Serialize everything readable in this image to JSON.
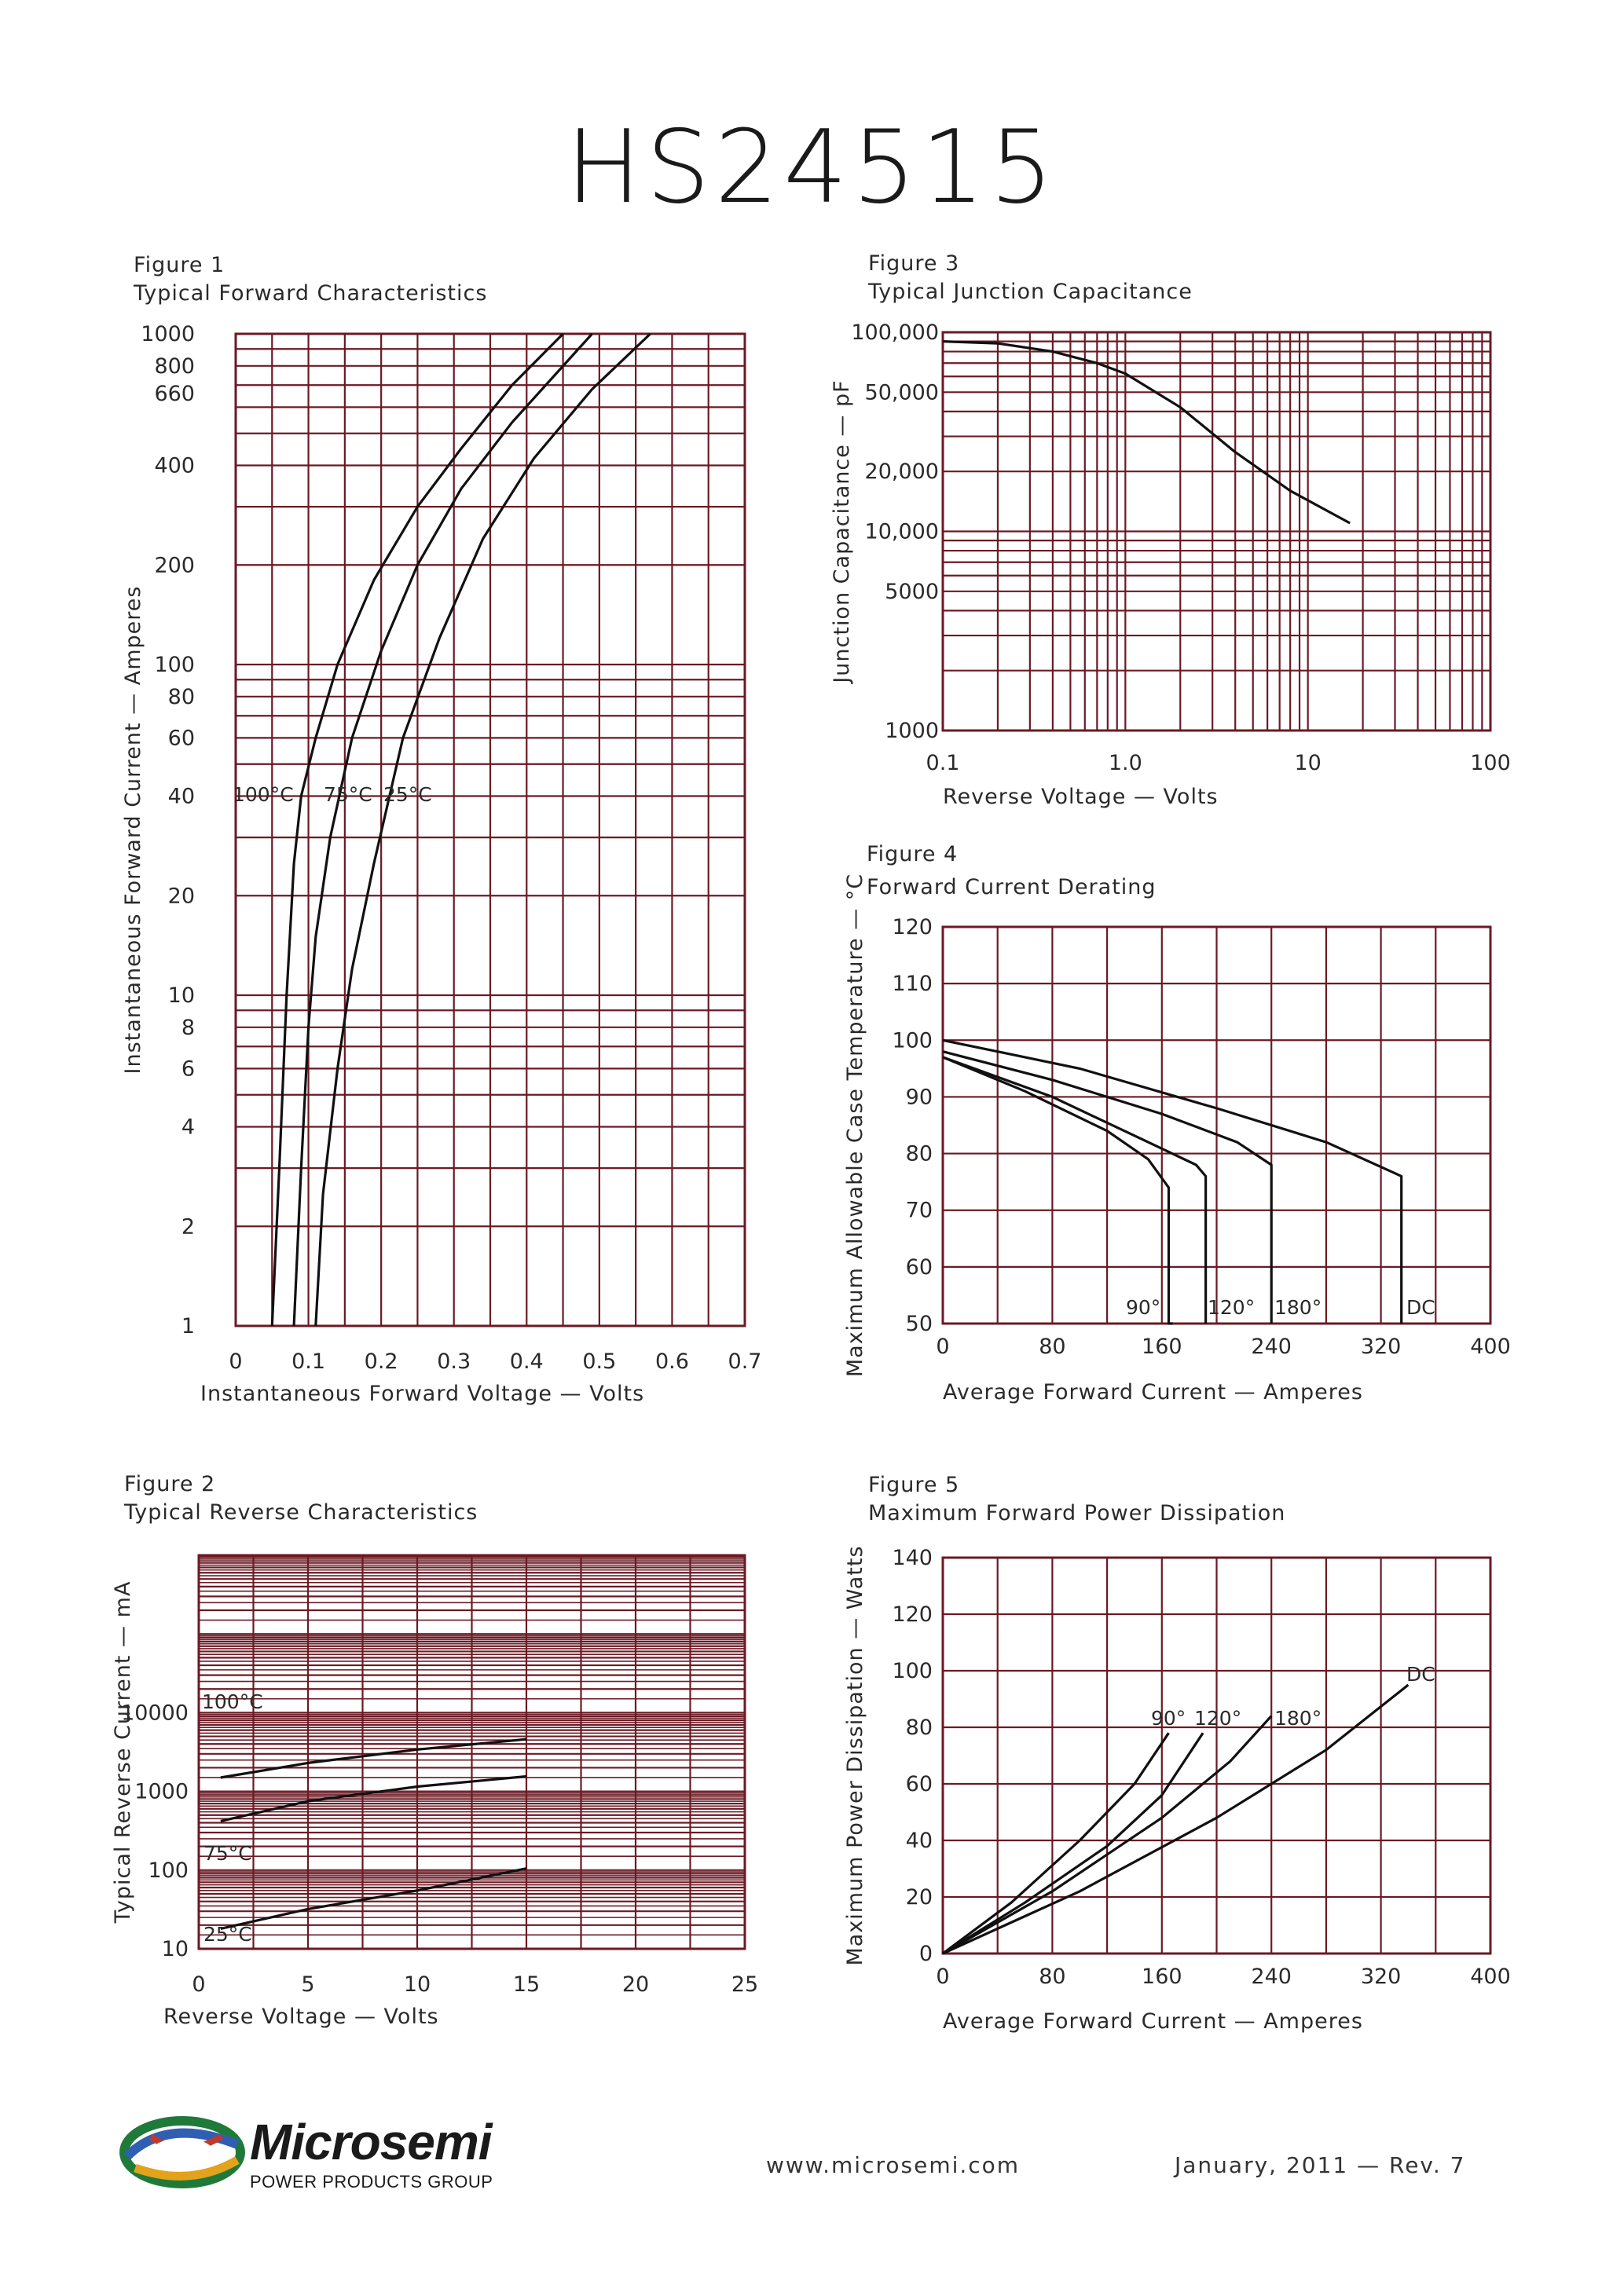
{
  "title": "HS24515",
  "footer": {
    "url": "www.microsemi.com",
    "date": "January, 2011 — Rev. 7",
    "logo_name": "Microsemi",
    "logo_sub": "POWER PRODUCTS GROUP"
  },
  "colors": {
    "grid": "#6b1a24",
    "curve": "#111111",
    "text": "#2a2a2a"
  },
  "chart_data": [
    {
      "id": "fig1",
      "type": "line",
      "figure_label": "Figure 1",
      "title": "Typical Forward Characteristics",
      "xlabel": "Instantaneous Forward Voltage — Volts",
      "ylabel": "Instantaneous Forward Current — Amperes",
      "xscale": "linear",
      "yscale": "log",
      "xlim": [
        0,
        0.7
      ],
      "ylim": [
        1,
        1000
      ],
      "x_ticks": [
        "0",
        "0.1",
        "0.2",
        "0.3",
        "0.4",
        "0.5",
        "0.6",
        "0.7"
      ],
      "y_ticks": [
        "1",
        "2",
        "4",
        "6",
        "8",
        "10",
        "20",
        "40",
        "60",
        "80",
        "100",
        "200",
        "400",
        "660",
        "800",
        "1000"
      ],
      "annotations": [
        "100°C",
        "75°C",
        "25°C"
      ],
      "series": [
        {
          "name": "100°C",
          "x": [
            0.05,
            0.06,
            0.07,
            0.08,
            0.09,
            0.11,
            0.14,
            0.19,
            0.25,
            0.31,
            0.38,
            0.45
          ],
          "y": [
            1,
            3,
            10,
            25,
            40,
            60,
            100,
            180,
            300,
            450,
            700,
            1000
          ]
        },
        {
          "name": "75°C",
          "x": [
            0.08,
            0.09,
            0.1,
            0.11,
            0.13,
            0.16,
            0.2,
            0.25,
            0.31,
            0.38,
            0.49
          ],
          "y": [
            1,
            3,
            8,
            15,
            30,
            60,
            110,
            200,
            340,
            540,
            1000
          ]
        },
        {
          "name": "25°C",
          "x": [
            0.11,
            0.12,
            0.14,
            0.16,
            0.19,
            0.23,
            0.28,
            0.34,
            0.41,
            0.49,
            0.57
          ],
          "y": [
            1,
            2.5,
            6,
            12,
            25,
            60,
            120,
            240,
            420,
            680,
            1000
          ]
        }
      ]
    },
    {
      "id": "fig2",
      "type": "line",
      "figure_label": "Figure 2",
      "title": "Typical Reverse Characteristics",
      "xlabel": "Reverse Voltage — Volts",
      "ylabel": "Typical Reverse Current — mA",
      "xscale": "linear",
      "yscale": "log",
      "xlim": [
        0,
        25
      ],
      "ylim": [
        10,
        1000000
      ],
      "x_ticks": [
        "0",
        "5",
        "10",
        "15",
        "20",
        "25"
      ],
      "y_ticks": [
        "10",
        "100",
        "1000",
        "10000"
      ],
      "annotations": [
        "100°C",
        "75°C",
        "25°C"
      ],
      "series": [
        {
          "name": "100°C",
          "x": [
            1,
            5,
            10,
            15
          ],
          "y": [
            1500,
            2300,
            3400,
            4600
          ]
        },
        {
          "name": "75°C",
          "x": [
            1,
            5,
            10,
            15
          ],
          "y": [
            420,
            750,
            1150,
            1550
          ]
        },
        {
          "name": "25°C",
          "x": [
            1,
            5,
            10,
            15
          ],
          "y": [
            18,
            32,
            55,
            105
          ]
        }
      ]
    },
    {
      "id": "fig3",
      "type": "line",
      "figure_label": "Figure 3",
      "title": "Typical Junction Capacitance",
      "xlabel": "Reverse Voltage — Volts",
      "ylabel": "Junction Capacitance — pF",
      "xscale": "log",
      "yscale": "log",
      "xlim": [
        0.1,
        100
      ],
      "ylim": [
        1000,
        100000
      ],
      "x_ticks": [
        "0.1",
        "1.0",
        "10",
        "100"
      ],
      "y_ticks": [
        "1000",
        "5000",
        "10,000",
        "20,000",
        "50,000",
        "100,000"
      ],
      "series": [
        {
          "name": "",
          "x": [
            0.1,
            0.2,
            0.4,
            0.7,
            1,
            2,
            4,
            8,
            17
          ],
          "y": [
            90000,
            88000,
            80000,
            70000,
            62000,
            42000,
            25000,
            16000,
            11000
          ]
        }
      ]
    },
    {
      "id": "fig4",
      "type": "line",
      "figure_label": "Figure 4",
      "title": "Forward Current Derating",
      "xlabel": "Average Forward Current — Amperes",
      "ylabel": "Maximum Allowable Case Temperature — °C",
      "xscale": "linear",
      "yscale": "linear",
      "xlim": [
        0,
        400
      ],
      "ylim": [
        50,
        120
      ],
      "x_ticks": [
        "0",
        "80",
        "160",
        "240",
        "320",
        "400"
      ],
      "y_ticks": [
        "50",
        "60",
        "70",
        "80",
        "90",
        "100",
        "110",
        "120"
      ],
      "annotations": [
        "90°",
        "120°",
        "180°",
        "DC"
      ],
      "series": [
        {
          "name": "90°",
          "x": [
            0,
            60,
            120,
            150,
            165,
            165,
            168
          ],
          "y": [
            97,
            91,
            84,
            79,
            74,
            50,
            50
          ]
        },
        {
          "name": "120°",
          "x": [
            0,
            80,
            150,
            185,
            192,
            192
          ],
          "y": [
            97,
            90,
            82,
            78,
            76,
            50
          ]
        },
        {
          "name": "180°",
          "x": [
            0,
            80,
            160,
            215,
            240,
            240
          ],
          "y": [
            98,
            93,
            87,
            82,
            78,
            50
          ]
        },
        {
          "name": "DC",
          "x": [
            0,
            100,
            200,
            280,
            335,
            335
          ],
          "y": [
            100,
            95,
            88,
            82,
            76,
            50
          ]
        }
      ]
    },
    {
      "id": "fig5",
      "type": "line",
      "figure_label": "Figure 5",
      "title": "Maximum Forward Power Dissipation",
      "xlabel": "Average Forward Current — Amperes",
      "ylabel": "Maximum Power Dissipation — Watts",
      "xscale": "linear",
      "yscale": "linear",
      "xlim": [
        0,
        400
      ],
      "ylim": [
        0,
        140
      ],
      "x_ticks": [
        "0",
        "80",
        "160",
        "240",
        "320",
        "400"
      ],
      "y_ticks": [
        "0",
        "20",
        "40",
        "60",
        "80",
        "100",
        "120",
        "140"
      ],
      "annotations": [
        "90°",
        "120°",
        "180°",
        "DC"
      ],
      "series": [
        {
          "name": "90°",
          "x": [
            0,
            50,
            100,
            140,
            165
          ],
          "y": [
            0,
            18,
            40,
            60,
            78
          ]
        },
        {
          "name": "120°",
          "x": [
            0,
            60,
            120,
            160,
            190
          ],
          "y": [
            0,
            18,
            38,
            56,
            78
          ]
        },
        {
          "name": "180°",
          "x": [
            0,
            80,
            160,
            210,
            240
          ],
          "y": [
            0,
            22,
            48,
            68,
            84
          ]
        },
        {
          "name": "DC",
          "x": [
            0,
            100,
            200,
            280,
            340
          ],
          "y": [
            0,
            22,
            48,
            72,
            95
          ]
        }
      ]
    }
  ]
}
